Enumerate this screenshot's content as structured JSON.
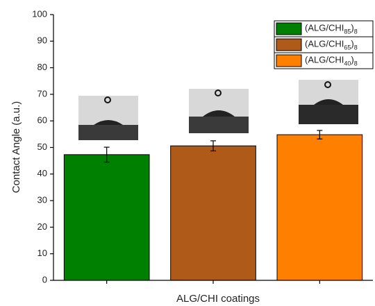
{
  "chart_data": {
    "type": "bar",
    "xlabel": "ALG/CHI coatings",
    "ylabel": "Contact Angle (a.u.)",
    "categories": [
      "(ALG/CHI85)8",
      "(ALG/CHI65)8",
      "(ALG/CHI40)8"
    ],
    "values": [
      47.3,
      50.6,
      54.8
    ],
    "errors": [
      2.8,
      1.9,
      1.6
    ],
    "colors": [
      "#008000",
      "#b05a1a",
      "#ff8000"
    ],
    "ylim": [
      0,
      100
    ],
    "yticks": [
      0,
      10,
      20,
      30,
      40,
      50,
      60,
      70,
      80,
      90,
      100
    ],
    "legend": "upper right",
    "grid": false
  }
}
